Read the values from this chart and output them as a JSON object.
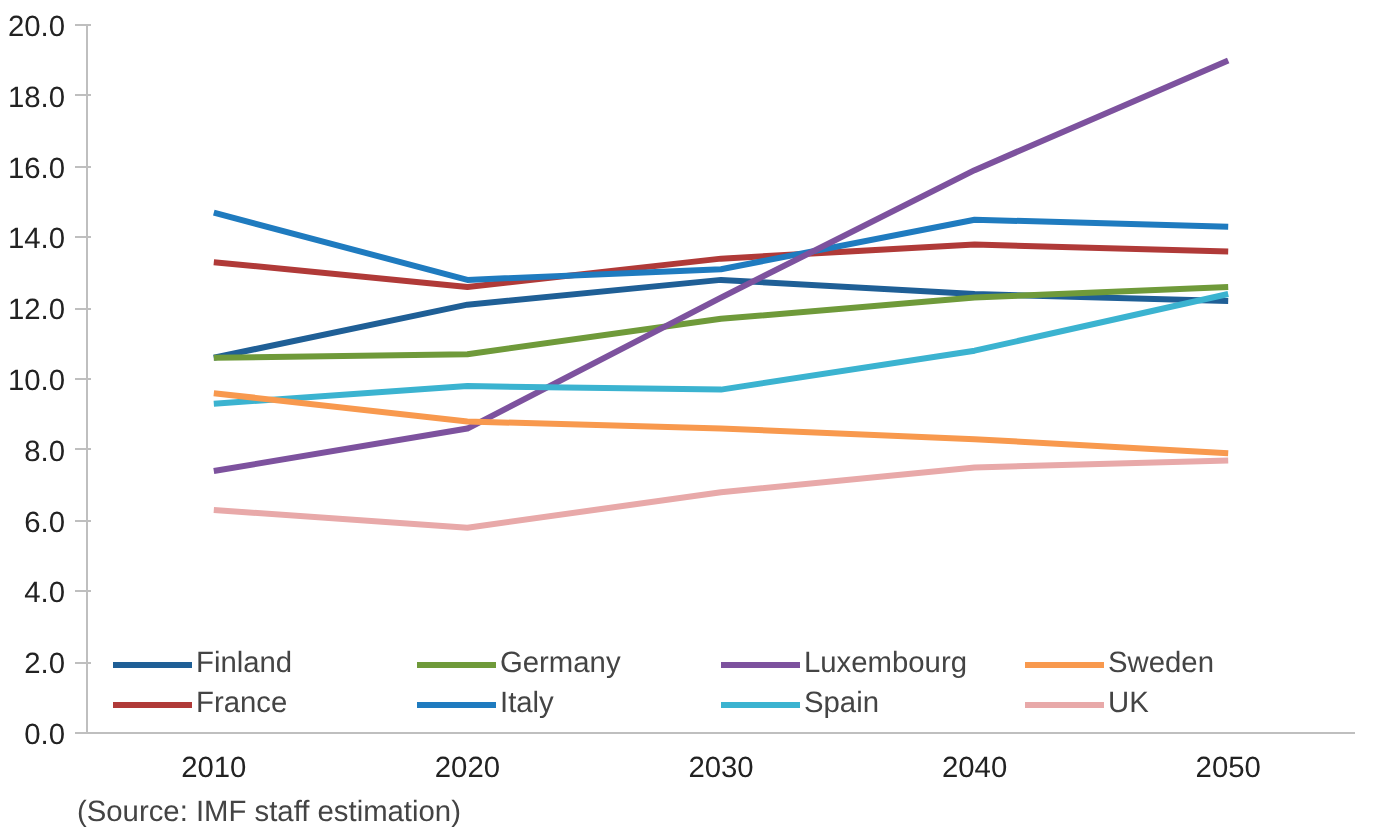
{
  "chart_data": {
    "type": "line",
    "categories": [
      "2010",
      "2020",
      "2030",
      "2040",
      "2050"
    ],
    "ylim": [
      0,
      20
    ],
    "yticks": [
      {
        "value": 0,
        "label": "0.0"
      },
      {
        "value": 2,
        "label": "2.0"
      },
      {
        "value": 4,
        "label": "4.0"
      },
      {
        "value": 6,
        "label": "6.0"
      },
      {
        "value": 8,
        "label": "8.0"
      },
      {
        "value": 10,
        "label": "10.0"
      },
      {
        "value": 12,
        "label": "12.0"
      },
      {
        "value": 14,
        "label": "14.0"
      },
      {
        "value": 16,
        "label": "16.0"
      },
      {
        "value": 18,
        "label": "18.0"
      },
      {
        "value": 20,
        "label": "20.0"
      }
    ],
    "grid": false,
    "legend": "bottom",
    "marker": "none",
    "line_style": "solid",
    "series": [
      {
        "name": "Finland",
        "color": "#1f5f96",
        "values": [
          10.6,
          12.1,
          12.8,
          12.4,
          12.2
        ]
      },
      {
        "name": "France",
        "color": "#b03a38",
        "values": [
          13.3,
          12.6,
          13.4,
          13.8,
          13.6
        ]
      },
      {
        "name": "Germany",
        "color": "#6f9a3a",
        "values": [
          10.6,
          10.7,
          11.7,
          12.3,
          12.6
        ]
      },
      {
        "name": "Italy",
        "color": "#1f7bbf",
        "values": [
          14.7,
          12.8,
          13.1,
          14.5,
          14.3
        ]
      },
      {
        "name": "Luxembourg",
        "color": "#7d529e",
        "values": [
          7.4,
          8.6,
          12.3,
          15.9,
          19.0
        ]
      },
      {
        "name": "Spain",
        "color": "#3bb3d0",
        "values": [
          9.3,
          9.8,
          9.7,
          10.8,
          12.4
        ]
      },
      {
        "name": "Sweden",
        "color": "#f8994e",
        "values": [
          9.6,
          8.8,
          8.6,
          8.3,
          7.9
        ]
      },
      {
        "name": "UK",
        "color": "#e8a9a9",
        "values": [
          6.3,
          5.8,
          6.8,
          7.5,
          7.7
        ]
      }
    ],
    "annotations": [
      "(Source: IMF staff estimation)"
    ]
  }
}
